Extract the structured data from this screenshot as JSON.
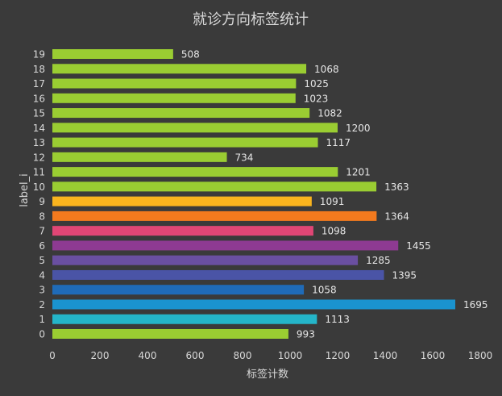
{
  "chart_data": {
    "type": "bar",
    "orientation": "horizontal",
    "title": "就诊方向标签统计",
    "xlabel": "标签计数",
    "ylabel": "label_i",
    "xlim": [
      0,
      1800
    ],
    "xticks": [
      0,
      200,
      400,
      600,
      800,
      1000,
      1200,
      1400,
      1600,
      1800
    ],
    "grid": false,
    "categories": [
      "0",
      "1",
      "2",
      "3",
      "4",
      "5",
      "6",
      "7",
      "8",
      "9",
      "10",
      "11",
      "12",
      "13",
      "14",
      "15",
      "16",
      "17",
      "18",
      "19"
    ],
    "values": [
      993,
      1113,
      1695,
      1058,
      1395,
      1285,
      1455,
      1098,
      1364,
      1091,
      1363,
      1201,
      734,
      1117,
      1200,
      1082,
      1023,
      1025,
      1068,
      508
    ],
    "colors": [
      "#9acd32",
      "#24b5c9",
      "#1a93cf",
      "#1f6bb8",
      "#4a54a6",
      "#6a4fa1",
      "#8e3a92",
      "#e04675",
      "#f47a1e",
      "#f9b41e",
      "#9acd32",
      "#9acd32",
      "#9acd32",
      "#9acd32",
      "#9acd32",
      "#9acd32",
      "#9acd32",
      "#9acd32",
      "#9acd32",
      "#9acd32"
    ]
  }
}
